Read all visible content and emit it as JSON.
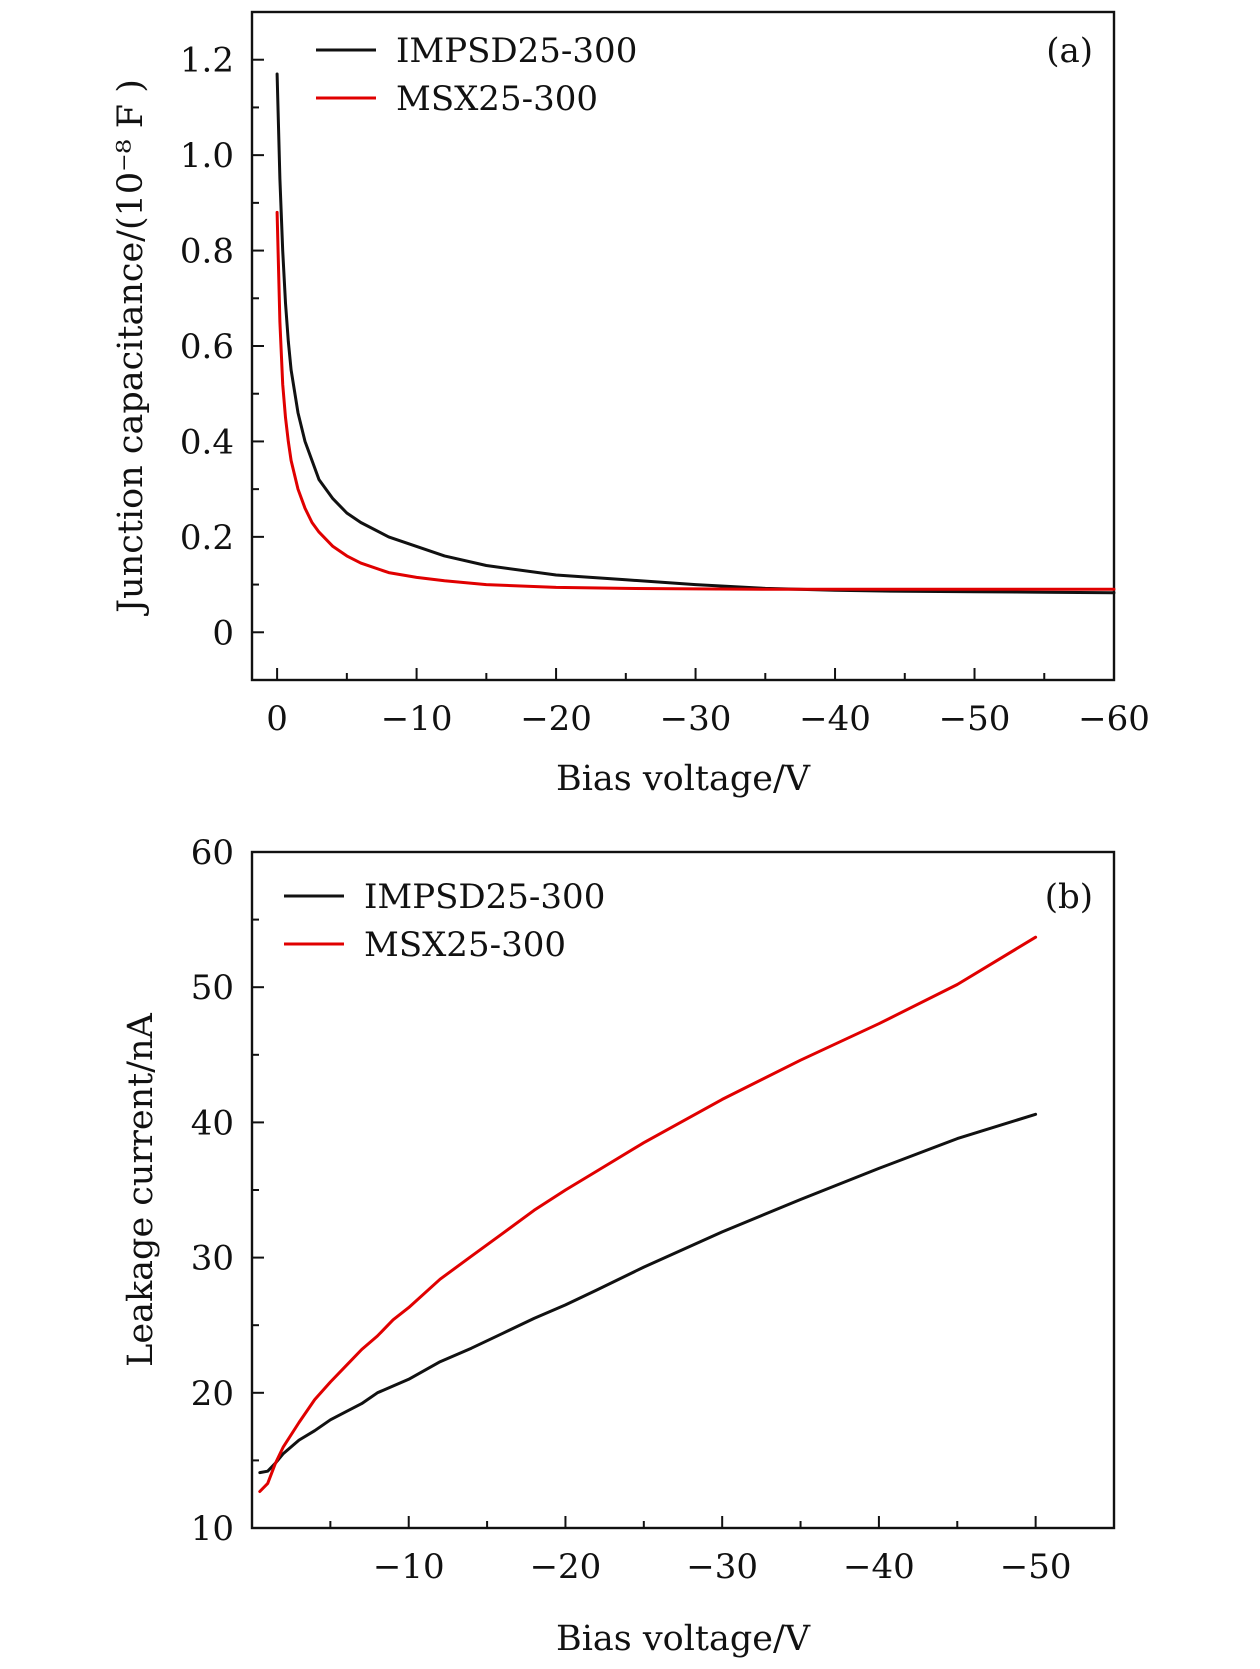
{
  "chart_data": [
    {
      "type": "line",
      "panel_label": "(a)",
      "xlabel": "Bias voltage/V",
      "ylabel": "Junction capacitance/(10⁻⁸ F )",
      "xlim": [
        1.8,
        -60
      ],
      "ylim": [
        -0.1,
        1.3
      ],
      "x_ticks": [
        0,
        -10,
        -20,
        -30,
        -40,
        -50,
        -60
      ],
      "x_tick_labels": [
        "0",
        "−10",
        "−20",
        "−30",
        "−40",
        "−50",
        "−60"
      ],
      "y_ticks": [
        0,
        0.2,
        0.4,
        0.6,
        0.8,
        1.0,
        1.2
      ],
      "y_tick_labels": [
        "0",
        "0.2",
        "0.4",
        "0.6",
        "0.8",
        "1.0",
        "1.2"
      ],
      "legend": [
        "IMPSD25-300",
        "MSX25-300"
      ],
      "legend_position": "top-left",
      "series": [
        {
          "name": "IMPSD25-300",
          "color": "#111111",
          "x": [
            0,
            -0.2,
            -0.4,
            -0.6,
            -0.8,
            -1,
            -1.5,
            -2,
            -2.5,
            -3,
            -4,
            -5,
            -6,
            -8,
            -10,
            -12,
            -15,
            -20,
            -25,
            -30,
            -35,
            -40,
            -45,
            -50,
            -55,
            -60
          ],
          "y": [
            1.17,
            0.95,
            0.8,
            0.69,
            0.61,
            0.55,
            0.46,
            0.4,
            0.36,
            0.32,
            0.28,
            0.25,
            0.23,
            0.2,
            0.18,
            0.16,
            0.14,
            0.12,
            0.11,
            0.1,
            0.092,
            0.088,
            0.086,
            0.085,
            0.084,
            0.083
          ]
        },
        {
          "name": "MSX25-300",
          "color": "#e00000",
          "x": [
            0,
            -0.2,
            -0.4,
            -0.6,
            -0.8,
            -1,
            -1.5,
            -2,
            -2.5,
            -3,
            -4,
            -5,
            -6,
            -8,
            -10,
            -12,
            -15,
            -20,
            -25,
            -30,
            -35,
            -40,
            -45,
            -50,
            -55,
            -60
          ],
          "y": [
            0.88,
            0.65,
            0.52,
            0.45,
            0.4,
            0.36,
            0.3,
            0.26,
            0.23,
            0.21,
            0.18,
            0.16,
            0.145,
            0.125,
            0.115,
            0.108,
            0.1,
            0.094,
            0.092,
            0.091,
            0.09,
            0.09,
            0.09,
            0.09,
            0.09,
            0.09
          ]
        }
      ]
    },
    {
      "type": "line",
      "panel_label": "(b)",
      "xlabel": "Bias voltage/V",
      "ylabel": "Leakage current/nA",
      "xlim": [
        0,
        -55
      ],
      "ylim": [
        10,
        60
      ],
      "x_ticks": [
        -10,
        -20,
        -30,
        -40,
        -50
      ],
      "x_tick_labels": [
        "−10",
        "−20",
        "−30",
        "−40",
        "−50"
      ],
      "y_ticks": [
        10,
        20,
        30,
        40,
        50,
        60
      ],
      "y_tick_labels": [
        "10",
        "20",
        "30",
        "40",
        "50",
        "60"
      ],
      "legend": [
        "IMPSD25-300",
        "MSX25-300"
      ],
      "legend_position": "top-left",
      "series": [
        {
          "name": "IMPSD25-300",
          "color": "#111111",
          "x": [
            -0.5,
            -1,
            -1.5,
            -2,
            -3,
            -4,
            -5,
            -6,
            -7,
            -8,
            -9,
            -10,
            -12,
            -14,
            -16,
            -18,
            -20,
            -22,
            -25,
            -30,
            -35,
            -40,
            -45,
            -50
          ],
          "y": [
            14.1,
            14.2,
            14.8,
            15.5,
            16.5,
            17.2,
            18.0,
            18.6,
            19.2,
            20.0,
            20.5,
            21.0,
            22.3,
            23.3,
            24.4,
            25.5,
            26.5,
            27.6,
            29.3,
            31.9,
            34.3,
            36.6,
            38.8,
            40.6
          ]
        },
        {
          "name": "MSX25-300",
          "color": "#e00000",
          "x": [
            -0.5,
            -1,
            -1.5,
            -2,
            -3,
            -4,
            -5,
            -6,
            -7,
            -8,
            -9,
            -10,
            -12,
            -14,
            -16,
            -18,
            -20,
            -22,
            -25,
            -30,
            -35,
            -40,
            -45,
            -50
          ],
          "y": [
            12.7,
            13.3,
            14.8,
            16.0,
            17.8,
            19.5,
            20.8,
            22.0,
            23.2,
            24.2,
            25.4,
            26.3,
            28.4,
            30.1,
            31.8,
            33.5,
            35.0,
            36.4,
            38.5,
            41.7,
            44.6,
            47.3,
            50.2,
            53.7
          ]
        }
      ]
    }
  ]
}
